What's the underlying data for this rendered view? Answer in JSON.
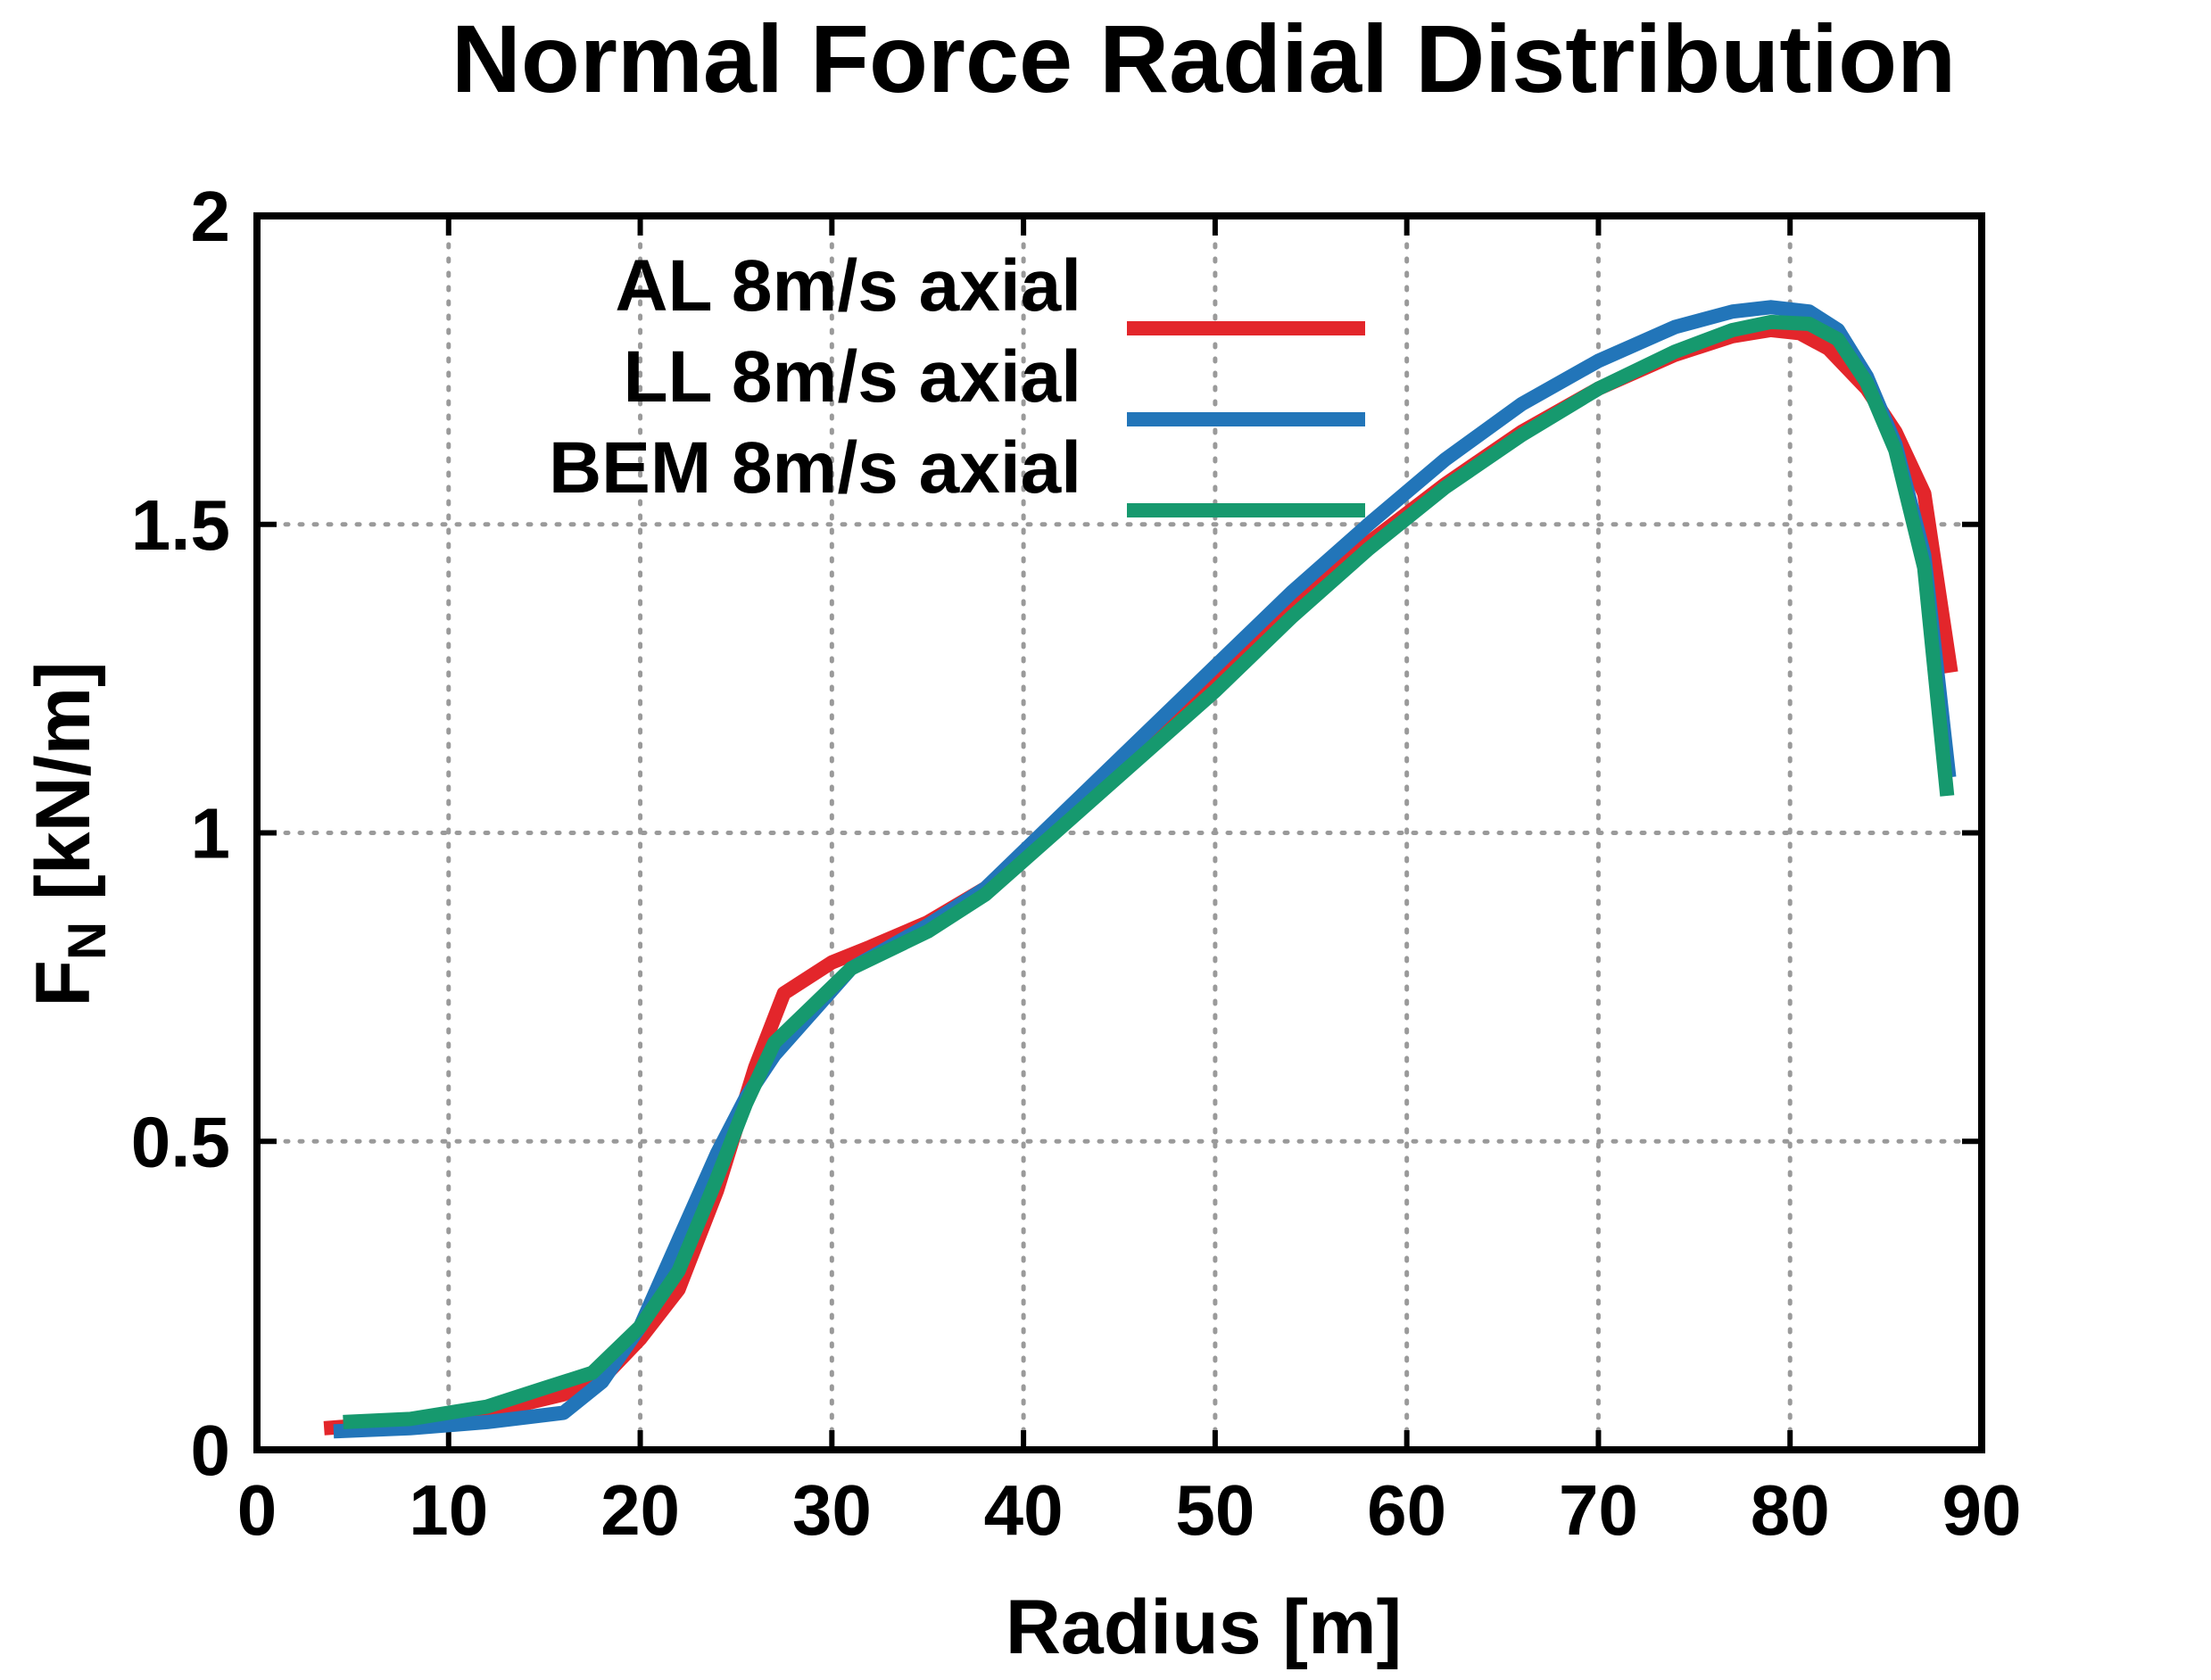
{
  "chart_data": {
    "type": "line",
    "title": "Normal Force Radial Distribution",
    "xlabel": "Radius [m]",
    "ylabel": {
      "main": "F",
      "sub": "N",
      "rest": " [kN/m]"
    },
    "xlim": [
      0,
      90
    ],
    "ylim": [
      0,
      2
    ],
    "xticks": [
      0,
      10,
      20,
      30,
      40,
      50,
      60,
      70,
      80,
      90
    ],
    "yticks": [
      0,
      0.5,
      1,
      1.5,
      2
    ],
    "ytick_labels": [
      "0",
      "0.5",
      "1",
      "1.5",
      "2"
    ],
    "grid": true,
    "legend_position": "top-left",
    "series": [
      {
        "name": "AL 8m/s axial",
        "color": "#e3262b",
        "x": [
          3.5,
          8,
          12,
          16,
          18,
          20,
          22,
          24,
          26,
          27.5,
          30,
          32,
          35,
          38,
          42,
          46,
          50,
          54,
          58,
          62,
          66,
          70,
          74,
          77,
          79,
          80.5,
          82,
          84,
          85.5,
          87,
          88.4
        ],
        "y": [
          0.035,
          0.045,
          0.06,
          0.09,
          0.115,
          0.18,
          0.26,
          0.42,
          0.62,
          0.74,
          0.79,
          0.815,
          0.855,
          0.91,
          1.02,
          1.13,
          1.245,
          1.36,
          1.47,
          1.565,
          1.65,
          1.72,
          1.775,
          1.805,
          1.815,
          1.81,
          1.785,
          1.72,
          1.65,
          1.55,
          1.26
        ]
      },
      {
        "name": "LL 8m/s axial",
        "color": "#2275b9",
        "x": [
          4,
          8,
          12,
          16,
          18,
          20,
          22,
          24,
          25.5,
          27,
          29,
          31,
          35,
          38,
          42,
          46,
          50,
          54,
          58,
          62,
          66,
          70,
          74,
          77,
          79,
          81,
          82.5,
          84,
          85.5,
          87,
          88.3
        ],
        "y": [
          0.03,
          0.035,
          0.045,
          0.06,
          0.11,
          0.2,
          0.34,
          0.48,
          0.57,
          0.64,
          0.71,
          0.78,
          0.85,
          0.91,
          1.03,
          1.15,
          1.27,
          1.39,
          1.5,
          1.605,
          1.695,
          1.765,
          1.82,
          1.845,
          1.852,
          1.845,
          1.815,
          1.74,
          1.63,
          1.45,
          1.09
        ]
      },
      {
        "name": "BEM 8m/s axial",
        "color": "#16996e",
        "x": [
          4.5,
          8,
          12,
          15,
          17.5,
          20,
          22,
          24,
          25.5,
          27,
          29,
          31,
          35,
          38,
          42,
          46,
          50,
          54,
          58,
          62,
          66,
          70,
          74,
          77,
          79,
          81,
          82.5,
          84,
          85.5,
          87,
          88.2
        ],
        "y": [
          0.045,
          0.05,
          0.07,
          0.1,
          0.125,
          0.2,
          0.29,
          0.44,
          0.56,
          0.66,
          0.72,
          0.78,
          0.84,
          0.9,
          1.01,
          1.12,
          1.23,
          1.35,
          1.46,
          1.56,
          1.645,
          1.72,
          1.78,
          1.815,
          1.828,
          1.825,
          1.8,
          1.73,
          1.62,
          1.43,
          1.06
        ]
      }
    ]
  }
}
